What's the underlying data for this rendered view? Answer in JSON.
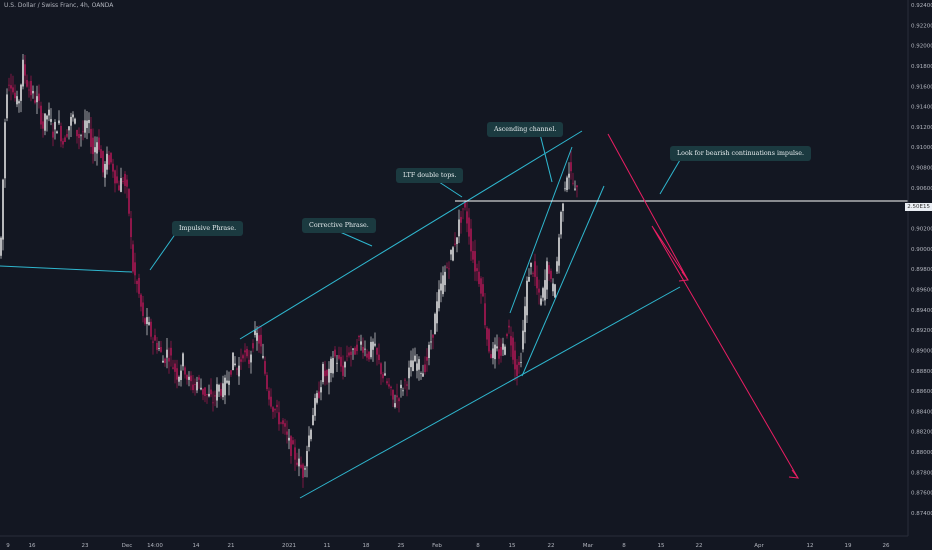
{
  "header": {
    "title": "U.S. Dollar / Swiss Franc, 4h, OANDA"
  },
  "chart_data": {
    "type": "candlestick",
    "yaxis_ticks": [
      "0.92400",
      "0.92200",
      "0.92000",
      "0.91800",
      "0.91600",
      "0.91400",
      "0.91200",
      "0.91000",
      "0.90800",
      "0.90600",
      "0.90400",
      "0.90200",
      "0.90000",
      "0.89800",
      "0.89600",
      "0.89400",
      "0.89200",
      "0.89000",
      "0.88800",
      "0.88600",
      "0.88400",
      "0.88200",
      "0.88000",
      "0.87800",
      "0.87600",
      "0.87400"
    ],
    "ylim": [
      0.873,
      0.925
    ],
    "xaxis_ticks": [
      "9",
      "16",
      "23",
      "Dec",
      "14:00",
      "14",
      "21",
      "2021",
      "11",
      "18",
      "25",
      "Feb",
      "8",
      "15",
      "22",
      "Mar",
      "8",
      "15",
      "22",
      "Apr",
      "12",
      "19",
      "26"
    ],
    "current_price_label": "2.50E15",
    "price_path": [
      [
        0,
        0.8985
      ],
      [
        3,
        0.901
      ],
      [
        8,
        0.9155
      ],
      [
        12,
        0.917
      ],
      [
        16,
        0.915
      ],
      [
        20,
        0.914
      ],
      [
        25,
        0.918
      ],
      [
        30,
        0.916
      ],
      [
        35,
        0.915
      ],
      [
        40,
        0.9145
      ],
      [
        45,
        0.912
      ],
      [
        50,
        0.9135
      ],
      [
        55,
        0.9115
      ],
      [
        60,
        0.9125
      ],
      [
        65,
        0.9105
      ],
      [
        70,
        0.912
      ],
      [
        75,
        0.913
      ],
      [
        80,
        0.911
      ],
      [
        85,
        0.9115
      ],
      [
        90,
        0.9125
      ],
      [
        95,
        0.9095
      ],
      [
        100,
        0.911
      ],
      [
        105,
        0.9075
      ],
      [
        110,
        0.909
      ],
      [
        115,
        0.908
      ],
      [
        120,
        0.906
      ],
      [
        125,
        0.907
      ],
      [
        130,
        0.905
      ],
      [
        135,
        0.898
      ],
      [
        140,
        0.896
      ],
      [
        145,
        0.893
      ],
      [
        150,
        0.8925
      ],
      [
        155,
        0.891
      ],
      [
        160,
        0.8905
      ],
      [
        165,
        0.889
      ],
      [
        170,
        0.89
      ],
      [
        175,
        0.8885
      ],
      [
        180,
        0.8875
      ],
      [
        185,
        0.889
      ],
      [
        190,
        0.887
      ],
      [
        195,
        0.8865
      ],
      [
        200,
        0.887
      ],
      [
        205,
        0.886
      ],
      [
        210,
        0.8855
      ],
      [
        215,
        0.885
      ],
      [
        220,
        0.8865
      ],
      [
        225,
        0.886
      ],
      [
        230,
        0.8875
      ],
      [
        235,
        0.889
      ],
      [
        240,
        0.888
      ],
      [
        245,
        0.89
      ],
      [
        250,
        0.8885
      ],
      [
        255,
        0.891
      ],
      [
        260,
        0.8915
      ],
      [
        265,
        0.889
      ],
      [
        270,
        0.886
      ],
      [
        275,
        0.8845
      ],
      [
        280,
        0.8835
      ],
      [
        285,
        0.8825
      ],
      [
        290,
        0.881
      ],
      [
        295,
        0.88
      ],
      [
        300,
        0.879
      ],
      [
        305,
        0.878
      ],
      [
        310,
        0.881
      ],
      [
        315,
        0.884
      ],
      [
        320,
        0.8855
      ],
      [
        325,
        0.888
      ],
      [
        330,
        0.887
      ],
      [
        335,
        0.8895
      ],
      [
        340,
        0.889
      ],
      [
        345,
        0.888
      ],
      [
        350,
        0.89
      ],
      [
        355,
        0.8895
      ],
      [
        360,
        0.891
      ],
      [
        365,
        0.8905
      ],
      [
        370,
        0.8895
      ],
      [
        375,
        0.8905
      ],
      [
        380,
        0.889
      ],
      [
        385,
        0.8875
      ],
      [
        390,
        0.8865
      ],
      [
        395,
        0.885
      ],
      [
        400,
        0.8855
      ],
      [
        405,
        0.8865
      ],
      [
        410,
        0.8875
      ],
      [
        415,
        0.889
      ],
      [
        420,
        0.8885
      ],
      [
        425,
        0.888
      ],
      [
        430,
        0.8895
      ],
      [
        435,
        0.892
      ],
      [
        440,
        0.895
      ],
      [
        445,
        0.897
      ],
      [
        450,
        0.8985
      ],
      [
        455,
        0.9
      ],
      [
        460,
        0.902
      ],
      [
        465,
        0.904
      ],
      [
        468,
        0.9035
      ],
      [
        472,
        0.901
      ],
      [
        476,
        0.8985
      ],
      [
        480,
        0.8975
      ],
      [
        484,
        0.896
      ],
      [
        487,
        0.893
      ],
      [
        490,
        0.8905
      ],
      [
        494,
        0.8895
      ],
      [
        498,
        0.89
      ],
      [
        502,
        0.8895
      ],
      [
        506,
        0.8905
      ],
      [
        510,
        0.8925
      ],
      [
        514,
        0.8905
      ],
      [
        518,
        0.888
      ],
      [
        522,
        0.8885
      ],
      [
        526,
        0.893
      ],
      [
        530,
        0.8975
      ],
      [
        534,
        0.8985
      ],
      [
        538,
        0.8965
      ],
      [
        542,
        0.8945
      ],
      [
        546,
        0.896
      ],
      [
        550,
        0.899
      ],
      [
        554,
        0.8955
      ],
      [
        558,
        0.8975
      ],
      [
        562,
        0.9025
      ],
      [
        566,
        0.906
      ],
      [
        570,
        0.908
      ],
      [
        574,
        0.907
      ],
      [
        577,
        0.9055
      ]
    ],
    "annotations": [
      {
        "text": "Impulsive Phrase."
      },
      {
        "text": "Corrective Phrase."
      },
      {
        "text": "LTF double tops."
      },
      {
        "text": "Ascending channel."
      },
      {
        "text": "Look for bearish continuations impulse."
      }
    ],
    "colors": {
      "background": "#131722",
      "bull": "#ffffff",
      "bear": "#c2185b",
      "lines": "#2fb7cf",
      "arrow": "#e91e63",
      "level": "#ffffff"
    }
  }
}
